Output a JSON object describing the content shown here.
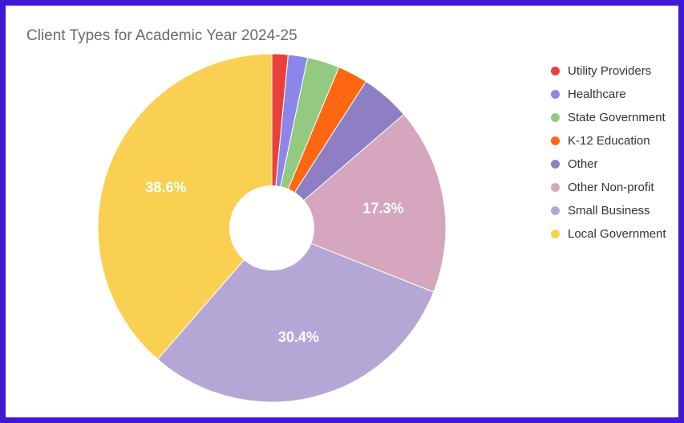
{
  "chart_data": {
    "type": "pie",
    "title": "Client Types for Academic Year 2024-25",
    "donut": true,
    "legend_position": "right",
    "slices": [
      {
        "name": "Utility Providers",
        "value": 1.5,
        "color": "#e8413a",
        "label": ""
      },
      {
        "name": "Healthcare",
        "value": 1.8,
        "color": "#8b87ea",
        "label": ""
      },
      {
        "name": "State Government",
        "value": 3.0,
        "color": "#93c981",
        "label": ""
      },
      {
        "name": "K-12 Education",
        "value": 2.8,
        "color": "#fd6711",
        "label": ""
      },
      {
        "name": "Other",
        "value": 4.6,
        "color": "#8e7fc5",
        "label": ""
      },
      {
        "name": "Other Non-profit",
        "value": 17.3,
        "color": "#d5a6bd",
        "label": "17.3%"
      },
      {
        "name": "Small Business",
        "value": 30.4,
        "color": "#b4a7d6",
        "label": "30.4%"
      },
      {
        "name": "Local Government",
        "value": 38.6,
        "color": "#fad053",
        "label": "38.6%"
      }
    ]
  }
}
